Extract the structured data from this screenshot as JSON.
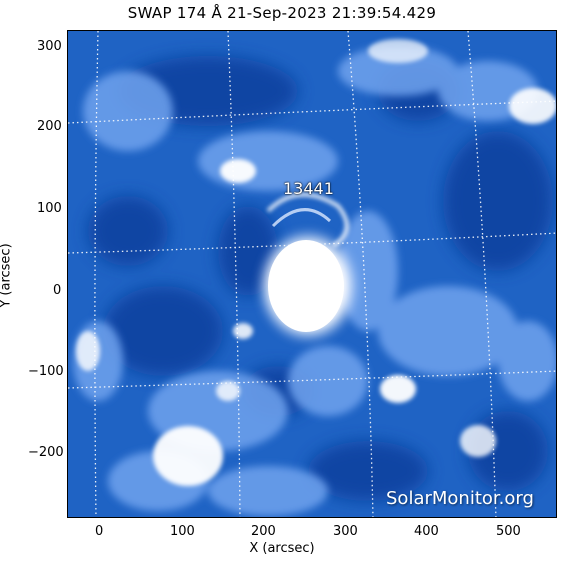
{
  "title": "SWAP 174 Å 21-Sep-2023 21:39:54.429",
  "region_label": "13441",
  "watermark": "SolarMonitor.org",
  "x_axis": {
    "label": "X (arcsec)",
    "ticks": [
      "0",
      "100",
      "200",
      "300",
      "400",
      "500"
    ]
  },
  "y_axis": {
    "label": "Y (arcsec)",
    "ticks": [
      "300",
      "200",
      "100",
      "0",
      "−100",
      "−200"
    ]
  },
  "colors": {
    "background": "#1f63c4",
    "dark": "#0b3f9e",
    "bright": "#ffffff",
    "grid": "#ffffff"
  }
}
